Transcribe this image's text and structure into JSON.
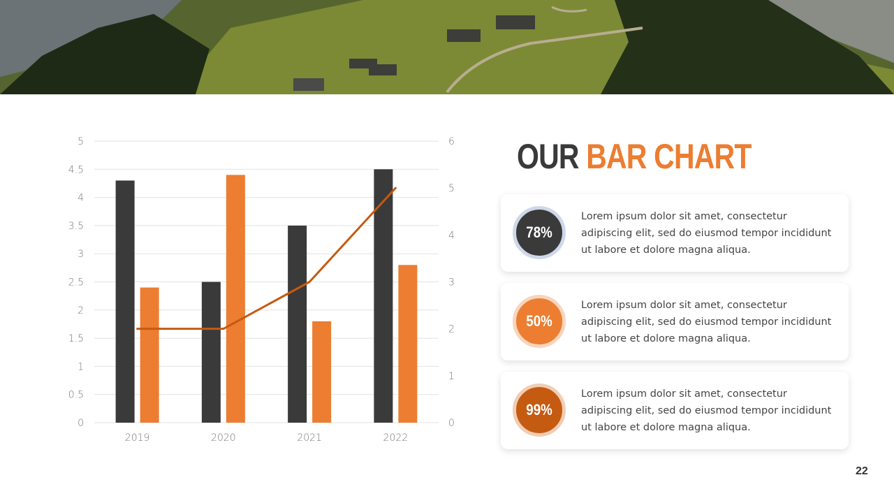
{
  "title": {
    "part1": "OUR",
    "part2": "BAR CHART"
  },
  "colors": {
    "dark": "#3a3a3a",
    "orange": "#ec7d31",
    "line": "#c55a11"
  },
  "chart_data": {
    "type": "bar",
    "categories": [
      "2019",
      "2020",
      "2021",
      "2022"
    ],
    "series": [
      {
        "type": "bar",
        "axis": "left",
        "color": "#3a3a3a",
        "values": [
          4.3,
          2.5,
          3.5,
          4.5
        ]
      },
      {
        "type": "bar",
        "axis": "left",
        "color": "#ec7d31",
        "values": [
          2.4,
          4.4,
          1.8,
          2.8
        ]
      },
      {
        "type": "line",
        "axis": "right",
        "color": "#c55a11",
        "values": [
          2,
          2,
          3,
          5
        ]
      }
    ],
    "ylim": [
      0,
      5
    ],
    "yticks": [
      "0",
      "0.5",
      "1",
      "1.5",
      "2",
      "2.5",
      "3",
      "3.5",
      "4",
      "4.5",
      "5"
    ],
    "y2lim": [
      0,
      6
    ],
    "y2ticks": [
      "0",
      "1",
      "2",
      "3",
      "4",
      "5",
      "6"
    ],
    "grid": true,
    "legend": "none"
  },
  "cards": [
    {
      "percent": "78%",
      "text": "Lorem ipsum dolor sit amet, consectetur adipiscing elit, sed do eiusmod tempor incididunt ut labore et dolore magna aliqua.",
      "fill": "#3a3a3a",
      "ring": "#cfd8e8"
    },
    {
      "percent": "50%",
      "text": "Lorem ipsum dolor sit amet, consectetur adipiscing elit, sed do eiusmod tempor incididunt ut labore et dolore magna aliqua.",
      "fill": "#ec7d31",
      "ring": "#f7d5bd"
    },
    {
      "percent": "99%",
      "text": "Lorem ipsum dolor sit amet, consectetur adipiscing elit, sed do eiusmod tempor incididunt ut labore et dolore magna aliqua.",
      "fill": "#c55a11",
      "ring": "#f0cdb5"
    }
  ],
  "page_number": "22"
}
